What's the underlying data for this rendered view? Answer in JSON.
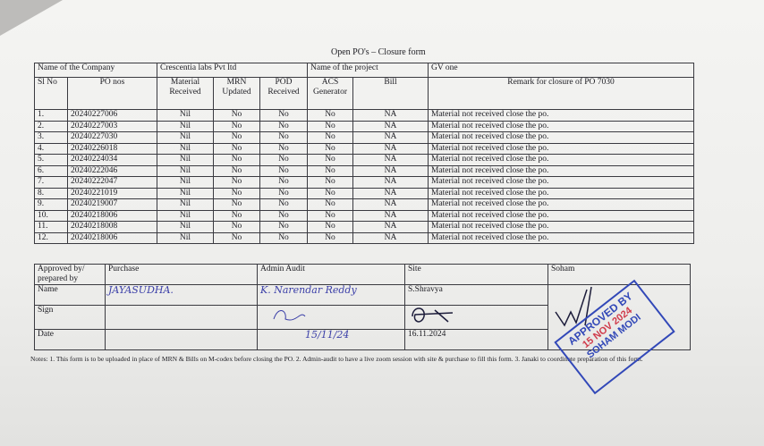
{
  "title": "Open PO's – Closure form",
  "header": {
    "company_label": "Name of the Company",
    "company": "Crescentia labs Pvt ltd",
    "project_label": "Name of the project",
    "project": "GV one"
  },
  "columns": [
    "Sl No",
    "PO nos",
    "Material Received",
    "MRN Updated",
    "POD Received",
    "ACS Generator",
    "Bill",
    "Remark for closure of PO 7030"
  ],
  "rows": [
    [
      "1.",
      "20240227006",
      "Nil",
      "No",
      "No",
      "No",
      "NA",
      "Material not received close the po."
    ],
    [
      "2.",
      "20240227003",
      "Nil",
      "No",
      "No",
      "No",
      "NA",
      "Material not received close the po."
    ],
    [
      "3.",
      "20240227030",
      "Nil",
      "No",
      "No",
      "No",
      "NA",
      "Material not received close the po."
    ],
    [
      "4.",
      "20240226018",
      "Nil",
      "No",
      "No",
      "No",
      "NA",
      "Material not received close the po."
    ],
    [
      "5.",
      "20240224034",
      "Nil",
      "No",
      "No",
      "No",
      "NA",
      "Material not received close the po."
    ],
    [
      "6.",
      "20240222046",
      "Nil",
      "No",
      "No",
      "No",
      "NA",
      "Material not received close the po."
    ],
    [
      "7.",
      "20240222047",
      "Nil",
      "No",
      "No",
      "No",
      "NA",
      "Material not received close the po."
    ],
    [
      "8.",
      "20240221019",
      "Nil",
      "No",
      "No",
      "No",
      "NA",
      "Material not received close the po."
    ],
    [
      "9.",
      "20240219007",
      "Nil",
      "No",
      "No",
      "No",
      "NA",
      "Material not received close the po."
    ],
    [
      "10.",
      "20240218006",
      "Nil",
      "No",
      "No",
      "No",
      "NA",
      "Material not received close the po."
    ],
    [
      "11.",
      "20240218008",
      "Nil",
      "No",
      "No",
      "No",
      "NA",
      "Material not received close the po."
    ],
    [
      "12.",
      "20240218006",
      "Nil",
      "No",
      "No",
      "No",
      "NA",
      "Material not received close the po."
    ]
  ],
  "approval": {
    "labels": [
      "Approved by/ prepared by",
      "Name",
      "Sign",
      "Date"
    ],
    "purchase": {
      "head": "Purchase",
      "name": "JAYASUDHA."
    },
    "admin": {
      "head": "Admin Audit",
      "name": "K. Narendar Reddy",
      "date": "15/11/24"
    },
    "site": {
      "head": "Site",
      "name": "S.Shravya",
      "date": "16.11.2024"
    },
    "soham": {
      "head": "Soham"
    }
  },
  "notes": "Notes: 1. This form is to be uploaded in place of MRN & Bills on M-codex before closing the PO. 2. Admin-audit to have a live zoom session with site & purchase to fill this form. 3. Janaki to coordinate preparation of this form.",
  "stamp": {
    "line1": "APPROVED BY",
    "line2": "15 NOV 2024",
    "line3": "SOHAM MODI",
    "color": "#3248b8"
  }
}
